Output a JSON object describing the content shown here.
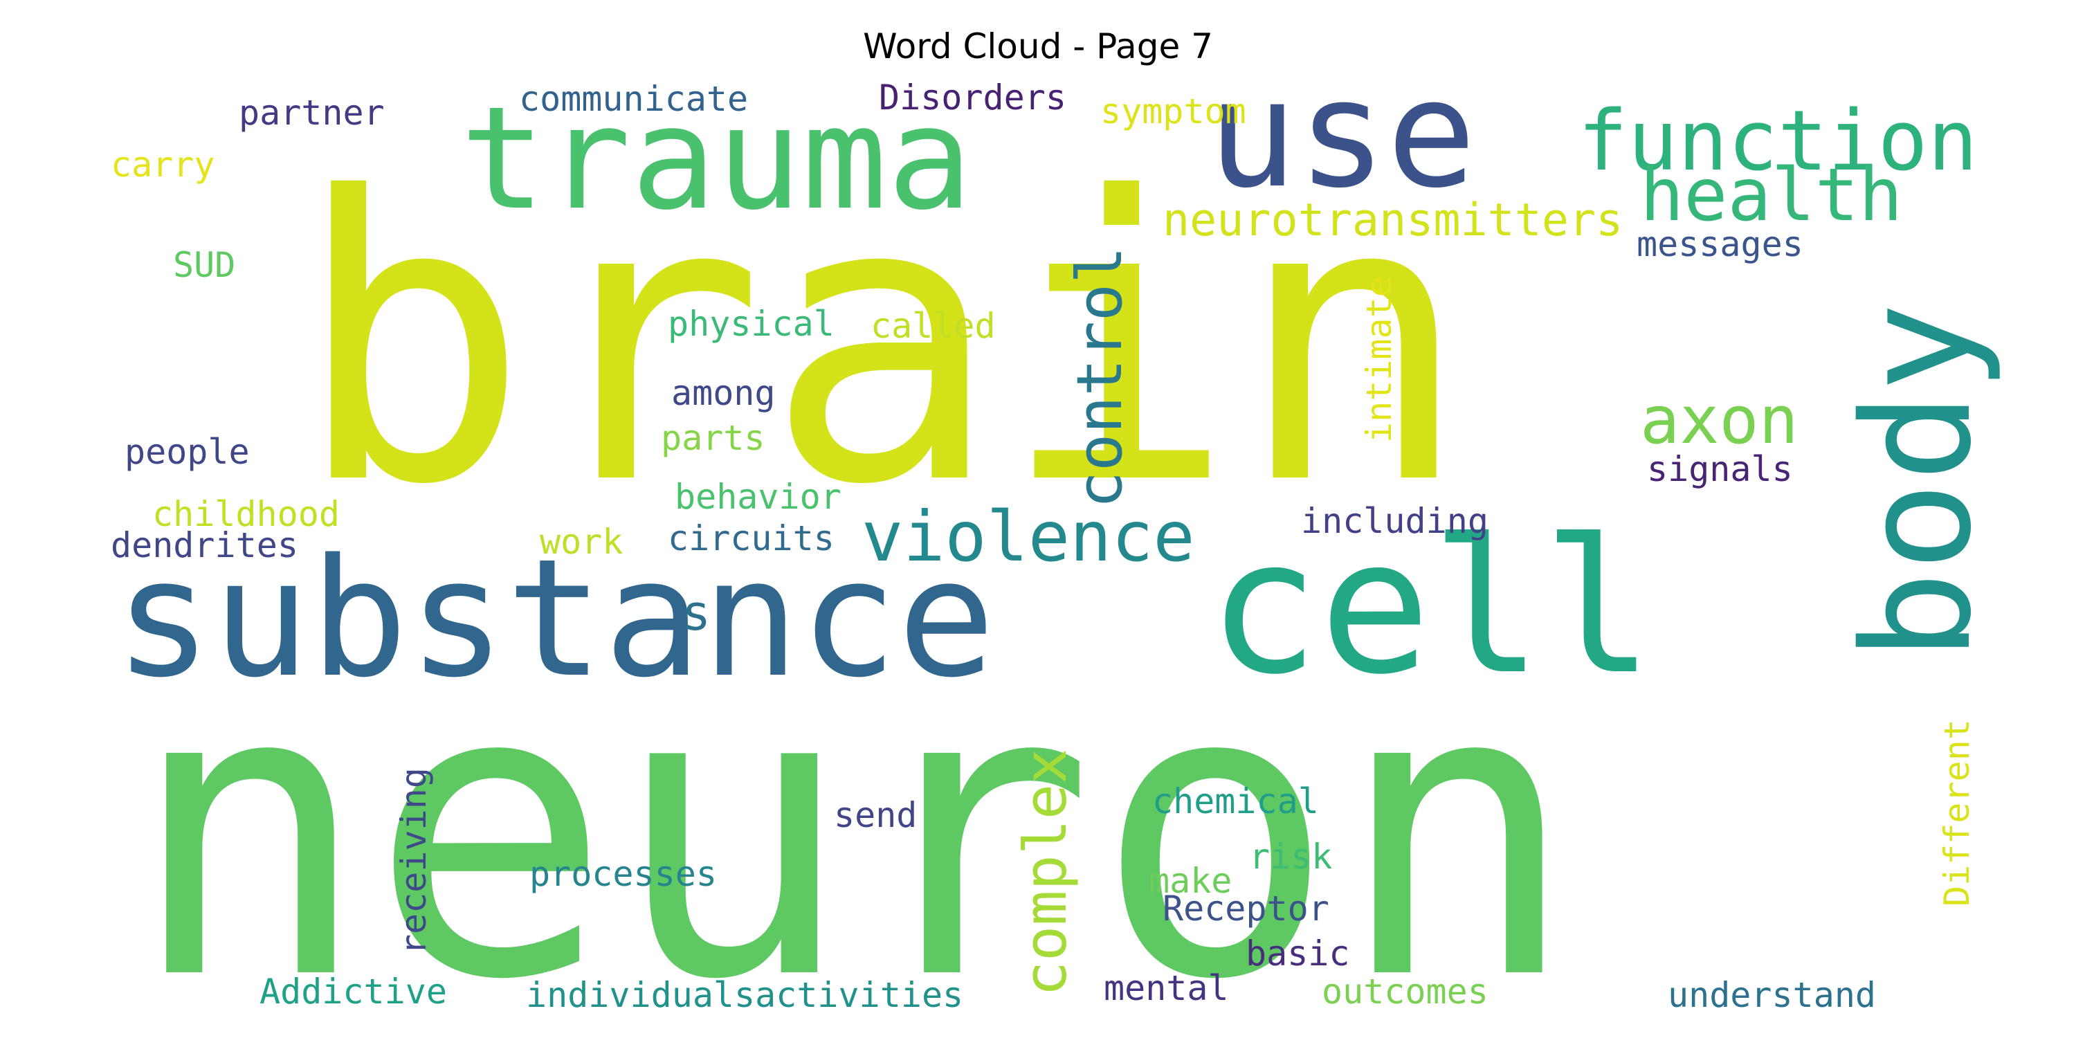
{
  "title": "Word Cloud - Page 7",
  "words": [
    {
      "text": "brain",
      "color": "#d4e21a"
    },
    {
      "text": "neuron",
      "color": "#5ec962"
    },
    {
      "text": "substance",
      "color": "#31668e"
    },
    {
      "text": "cell",
      "color": "#22a884"
    },
    {
      "text": "trauma",
      "color": "#4ac16d"
    },
    {
      "text": "use",
      "color": "#3b528b"
    },
    {
      "text": "body",
      "color": "#21918c"
    },
    {
      "text": "function",
      "color": "#2db27d"
    },
    {
      "text": "health",
      "color": "#35b779"
    },
    {
      "text": "control",
      "color": "#2a788e"
    },
    {
      "text": "violence",
      "color": "#23898e"
    },
    {
      "text": "axon",
      "color": "#7ad151"
    },
    {
      "text": "complex",
      "color": "#a5db36"
    },
    {
      "text": "neurotransmitters",
      "color": "#d2e21b"
    },
    {
      "text": "communicate",
      "color": "#33638d"
    },
    {
      "text": "Disorders",
      "color": "#482173"
    },
    {
      "text": "symptom",
      "color": "#dde318"
    },
    {
      "text": "partner",
      "color": "#443983"
    },
    {
      "text": "carry",
      "color": "#e5e419"
    },
    {
      "text": "messages",
      "color": "#39558c"
    },
    {
      "text": "SUD",
      "color": "#5ec962"
    },
    {
      "text": "physical",
      "color": "#3aba76"
    },
    {
      "text": "called",
      "color": "#c0df25"
    },
    {
      "text": "intimate",
      "color": "#e2e418"
    },
    {
      "text": "among",
      "color": "#3e4989"
    },
    {
      "text": "parts",
      "color": "#86d549"
    },
    {
      "text": "people",
      "color": "#3f4788"
    },
    {
      "text": "signals",
      "color": "#482475"
    },
    {
      "text": "childhood",
      "color": "#c2df23"
    },
    {
      "text": "behavior",
      "color": "#4ac16d"
    },
    {
      "text": "including",
      "color": "#424086"
    },
    {
      "text": "dendrites",
      "color": "#404688"
    },
    {
      "text": "work",
      "color": "#bddf26"
    },
    {
      "text": "circuits",
      "color": "#306a8e"
    },
    {
      "text": "s",
      "color": "#2c728e"
    },
    {
      "text": "receiving",
      "color": "#3f4889"
    },
    {
      "text": "Different",
      "color": "#dae319"
    },
    {
      "text": "chemical",
      "color": "#1f9e89"
    },
    {
      "text": "send",
      "color": "#414487"
    },
    {
      "text": "risk",
      "color": "#3dbc74"
    },
    {
      "text": "processes",
      "color": "#25848e"
    },
    {
      "text": "make",
      "color": "#6ccd5a"
    },
    {
      "text": "Receptor",
      "color": "#3b528b"
    },
    {
      "text": "basic",
      "color": "#472d7b"
    },
    {
      "text": "Addictive",
      "color": "#1fa187"
    },
    {
      "text": "individualsactivities",
      "color": "#21918c"
    },
    {
      "text": "mental",
      "color": "#46337f"
    },
    {
      "text": "outcomes",
      "color": "#7ad151"
    },
    {
      "text": "understand",
      "color": "#2c728e"
    }
  ]
}
